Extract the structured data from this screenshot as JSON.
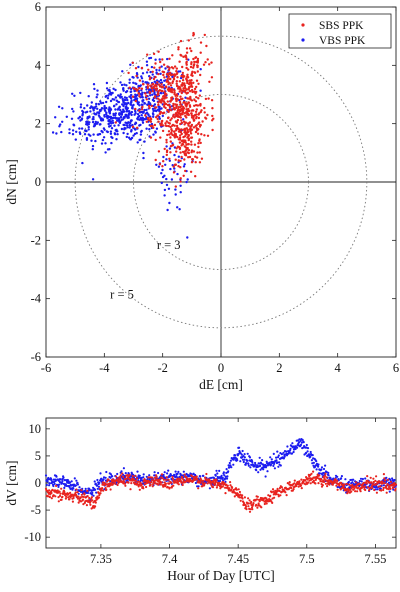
{
  "chart_data": [
    {
      "type": "scatter",
      "xlabel": "dE [cm]",
      "ylabel": "dN [cm]",
      "xlim": [
        -6,
        6
      ],
      "ylim": [
        -6,
        6
      ],
      "xticks": [
        -6,
        -4,
        -2,
        0,
        2,
        4,
        6
      ],
      "yticks": [
        -6,
        -4,
        -2,
        0,
        2,
        4,
        6
      ],
      "xtick_labels": [
        "-6",
        "-4",
        "-2",
        "0",
        "2",
        "4",
        "6"
      ],
      "ytick_labels": [
        "-6",
        "-4",
        "-2",
        "0",
        "2",
        "4",
        "6"
      ],
      "grid": false,
      "legend": "top-right",
      "reference_circles": [
        {
          "r": 3,
          "label": "r = 3"
        },
        {
          "r": 5,
          "label": "r = 5"
        }
      ],
      "series": [
        {
          "name": "SBS PPK",
          "color": "#e8231f",
          "clusters": [
            {
              "center": [
                -1.3,
                2.3
              ],
              "spread": [
                0.45,
                0.8
              ],
              "n": 420
            },
            {
              "center": [
                -2.0,
                3.2
              ],
              "spread": [
                0.5,
                0.55
              ],
              "n": 180
            },
            {
              "center": [
                -1.0,
                4.1
              ],
              "spread": [
                0.3,
                0.4
              ],
              "n": 60
            },
            {
              "center": [
                -1.4,
                0.9
              ],
              "spread": [
                0.35,
                0.45
              ],
              "n": 40
            }
          ]
        },
        {
          "name": "VBS PPK",
          "color": "#1c1cf0",
          "clusters": [
            {
              "center": [
                -3.3,
                2.4
              ],
              "spread": [
                0.7,
                0.55
              ],
              "n": 440
            },
            {
              "center": [
                -2.2,
                3.2
              ],
              "spread": [
                0.5,
                0.5
              ],
              "n": 160
            },
            {
              "center": [
                -4.5,
                2.0
              ],
              "spread": [
                0.5,
                0.35
              ],
              "n": 80
            },
            {
              "center": [
                -1.7,
                0.2
              ],
              "spread": [
                0.4,
                0.7
              ],
              "n": 50
            }
          ]
        }
      ]
    },
    {
      "type": "line",
      "xlabel": "Hour of Day [UTC]",
      "ylabel": "dV [cm]",
      "xlim": [
        7.31,
        7.565
      ],
      "ylim": [
        -12,
        12
      ],
      "xticks": [
        7.35,
        7.4,
        7.45,
        7.5,
        7.55
      ],
      "yticks": [
        -10,
        -5,
        0,
        5,
        10
      ],
      "xtick_labels": [
        "7.35",
        "7.4",
        "7.45",
        "7.5",
        "7.55"
      ],
      "ytick_labels": [
        "-10",
        "-5",
        "0",
        "5",
        "10"
      ],
      "grid": false,
      "series": [
        {
          "name": "SBS PPK",
          "color": "#e8231f",
          "x": [
            7.31,
            7.32,
            7.33,
            7.34,
            7.345,
            7.35,
            7.36,
            7.37,
            7.38,
            7.39,
            7.4,
            7.41,
            7.42,
            7.43,
            7.44,
            7.45,
            7.455,
            7.46,
            7.47,
            7.48,
            7.49,
            7.5,
            7.505,
            7.51,
            7.52,
            7.53,
            7.54,
            7.55,
            7.56,
            7.565
          ],
          "y": [
            -1.5,
            -2.0,
            -2.5,
            -3.0,
            -4.0,
            -1.0,
            0.5,
            0.5,
            0.0,
            0.5,
            0.0,
            0.5,
            0.5,
            0.0,
            -0.5,
            -2.0,
            -3.5,
            -4.0,
            -3.0,
            -1.5,
            -0.5,
            0.5,
            1.0,
            0.5,
            0.0,
            -1.0,
            -0.5,
            0.0,
            -0.5,
            -0.5
          ],
          "noise": 0.9
        },
        {
          "name": "VBS PPK",
          "color": "#1c1cf0",
          "x": [
            7.31,
            7.32,
            7.33,
            7.34,
            7.345,
            7.35,
            7.36,
            7.37,
            7.38,
            7.39,
            7.4,
            7.41,
            7.42,
            7.43,
            7.44,
            7.445,
            7.45,
            7.46,
            7.47,
            7.48,
            7.49,
            7.495,
            7.5,
            7.51,
            7.52,
            7.53,
            7.54,
            7.55,
            7.56,
            7.565
          ],
          "y": [
            0.5,
            0.5,
            -0.5,
            -2.0,
            -1.5,
            0.5,
            1.0,
            1.0,
            0.5,
            0.5,
            1.5,
            1.0,
            0.5,
            0.5,
            1.0,
            3.5,
            5.5,
            3.5,
            3.0,
            4.5,
            6.5,
            7.5,
            6.0,
            2.0,
            0.5,
            -0.5,
            0.0,
            -0.5,
            0.0,
            0.0
          ],
          "noise": 1.0
        }
      ]
    }
  ]
}
